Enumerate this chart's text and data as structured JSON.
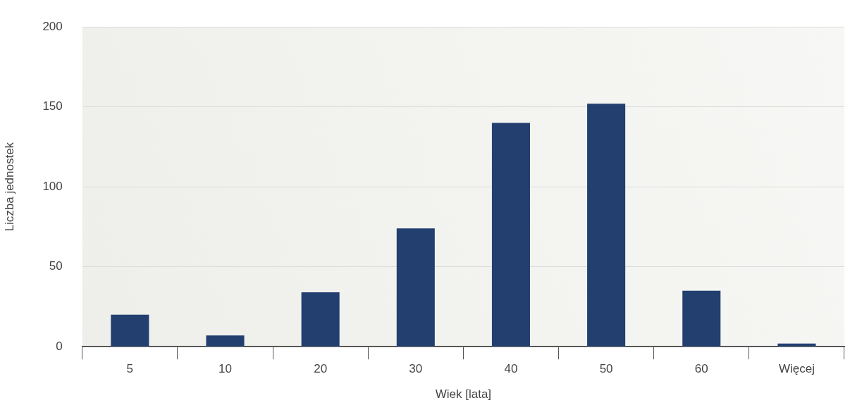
{
  "chart_data": {
    "type": "bar",
    "xlabel": "Wiek [lata]",
    "ylabel": "Liczba jednostek",
    "categories": [
      "5",
      "10",
      "20",
      "30",
      "40",
      "50",
      "60",
      "Więcej"
    ],
    "values": [
      20,
      7,
      34,
      74,
      140,
      152,
      35,
      2
    ],
    "color": "#223f70",
    "ylim": [
      0,
      200
    ],
    "yticks": [
      0,
      50,
      100,
      150,
      200
    ],
    "grid": "y",
    "legend": false
  }
}
